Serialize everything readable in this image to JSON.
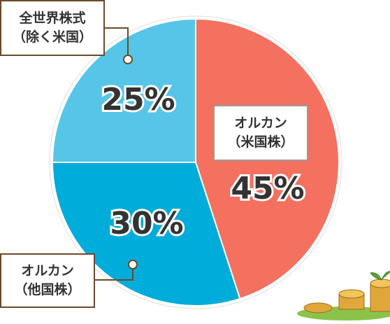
{
  "chart_data": {
    "type": "pie",
    "categories": [
      "オルカン\n（米国株）",
      "オルカン\n（他国株）",
      "全世界株式\n（除く米国）"
    ],
    "values": [
      45,
      30,
      25
    ],
    "value_labels": [
      "45%",
      "30%",
      "25%"
    ],
    "colors": [
      "#f4705f",
      "#00acd9",
      "#56c5e8"
    ]
  }
}
